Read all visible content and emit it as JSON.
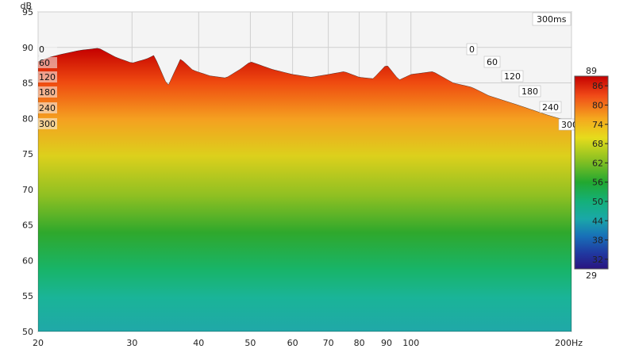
{
  "chart_data": {
    "type": "waterfall",
    "title": "",
    "xlabel": "",
    "ylabel": "dB",
    "x_unit": "Hz",
    "x_scale": "log",
    "xlim": [
      20,
      200
    ],
    "ylim": [
      50,
      95
    ],
    "grid": true,
    "x_ticks": [
      {
        "value": 20,
        "label": "20"
      },
      {
        "value": 30,
        "label": "30"
      },
      {
        "value": 40,
        "label": "40"
      },
      {
        "value": 50,
        "label": "50"
      },
      {
        "value": 60,
        "label": "60"
      },
      {
        "value": 70,
        "label": "70"
      },
      {
        "value": 80,
        "label": "80"
      },
      {
        "value": 90,
        "label": "90"
      },
      {
        "value": 100,
        "label": "100"
      },
      {
        "value": 200,
        "label": "200Hz"
      }
    ],
    "y_ticks": [
      50,
      55,
      60,
      65,
      70,
      75,
      80,
      85,
      90,
      95
    ],
    "depth_axis": {
      "unit": "ms",
      "max_label": "300ms",
      "ticks": [
        "0",
        "60",
        "120",
        "180",
        "240",
        "300"
      ]
    },
    "colorbar": {
      "min_label": "29",
      "max_label": "89",
      "ticks": [
        86,
        80,
        74,
        68,
        62,
        56,
        50,
        44,
        38,
        32
      ]
    },
    "first_slice": [
      {
        "f": 20,
        "db": 88.0
      },
      {
        "f": 21,
        "db": 88.6
      },
      {
        "f": 22,
        "db": 89.0
      },
      {
        "f": 24,
        "db": 89.6
      },
      {
        "f": 26,
        "db": 89.9
      },
      {
        "f": 28,
        "db": 88.6
      },
      {
        "f": 30,
        "db": 87.8
      },
      {
        "f": 32,
        "db": 88.4
      },
      {
        "f": 33,
        "db": 88.9
      },
      {
        "f": 35,
        "db": 84.5
      },
      {
        "f": 37,
        "db": 88.4
      },
      {
        "f": 39,
        "db": 86.8
      },
      {
        "f": 42,
        "db": 86.0
      },
      {
        "f": 45,
        "db": 85.7
      },
      {
        "f": 48,
        "db": 87.0
      },
      {
        "f": 50,
        "db": 88.0
      },
      {
        "f": 55,
        "db": 86.9
      },
      {
        "f": 60,
        "db": 86.2
      },
      {
        "f": 65,
        "db": 85.8
      },
      {
        "f": 70,
        "db": 86.2
      },
      {
        "f": 75,
        "db": 86.6
      },
      {
        "f": 80,
        "db": 85.8
      },
      {
        "f": 85,
        "db": 85.6
      },
      {
        "f": 90,
        "db": 87.6
      },
      {
        "f": 95,
        "db": 85.4
      },
      {
        "f": 100,
        "db": 86.2
      },
      {
        "f": 110,
        "db": 86.6
      },
      {
        "f": 120,
        "db": 85.0
      },
      {
        "f": 130,
        "db": 84.4
      },
      {
        "f": 140,
        "db": 83.2
      },
      {
        "f": 160,
        "db": 81.8
      },
      {
        "f": 180,
        "db": 80.5
      },
      {
        "f": 200,
        "db": 79.5
      }
    ]
  }
}
